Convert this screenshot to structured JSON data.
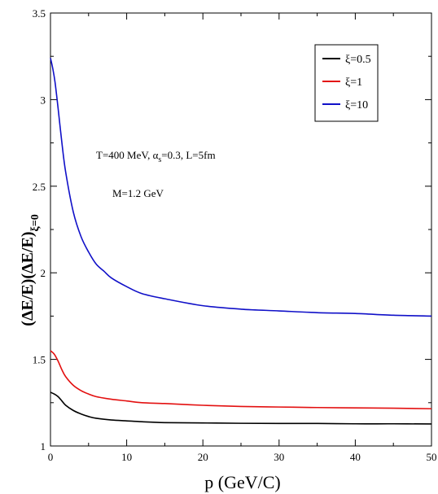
{
  "chart_data": {
    "type": "line",
    "title": "",
    "xlabel": "p (GeV/C)",
    "ylabel": "(ΔE/E)(ΔE/E)",
    "ylabel_sub": "ξ=0",
    "xlim": [
      0,
      50
    ],
    "ylim": [
      1,
      3.5
    ],
    "xticks": [
      0,
      10,
      20,
      30,
      40,
      50
    ],
    "yticks": [
      1,
      1.5,
      2,
      2.5,
      3,
      3.5
    ],
    "grid": false,
    "legend_position": "top-right",
    "annotations": {
      "line1_prefix": "T=400 MeV, α",
      "line1_sub": "s",
      "line1_suffix": "=0.3, L=5fm",
      "line2": "M=1.2 GeV"
    },
    "series": [
      {
        "name": "ξ=0.5",
        "color": "#000000",
        "x": [
          0,
          0.5,
          1,
          1.5,
          2,
          3,
          4,
          5,
          6,
          8,
          10,
          12,
          15,
          20,
          25,
          30,
          35,
          40,
          45,
          50
        ],
        "y": [
          1.31,
          1.3,
          1.285,
          1.26,
          1.235,
          1.205,
          1.185,
          1.17,
          1.16,
          1.15,
          1.145,
          1.14,
          1.135,
          1.133,
          1.131,
          1.13,
          1.13,
          1.128,
          1.128,
          1.127
        ]
      },
      {
        "name": "ξ=1",
        "color": "#e31010",
        "x": [
          0,
          0.5,
          1,
          1.5,
          2,
          3,
          4,
          5,
          6,
          8,
          10,
          12,
          15,
          20,
          25,
          30,
          35,
          40,
          45,
          50
        ],
        "y": [
          1.55,
          1.53,
          1.49,
          1.44,
          1.4,
          1.35,
          1.32,
          1.3,
          1.285,
          1.27,
          1.26,
          1.25,
          1.245,
          1.235,
          1.228,
          1.225,
          1.222,
          1.22,
          1.218,
          1.215
        ]
      },
      {
        "name": "ξ=10",
        "color": "#1010c8",
        "x": [
          0,
          0.3,
          0.6,
          1,
          1.5,
          2,
          3,
          4,
          5,
          6,
          7,
          8,
          10,
          12,
          15,
          20,
          25,
          30,
          35,
          40,
          45,
          50
        ],
        "y": [
          3.24,
          3.18,
          3.1,
          2.95,
          2.75,
          2.58,
          2.35,
          2.21,
          2.12,
          2.05,
          2.01,
          1.97,
          1.92,
          1.88,
          1.85,
          1.81,
          1.79,
          1.78,
          1.77,
          1.765,
          1.755,
          1.75
        ]
      }
    ]
  }
}
